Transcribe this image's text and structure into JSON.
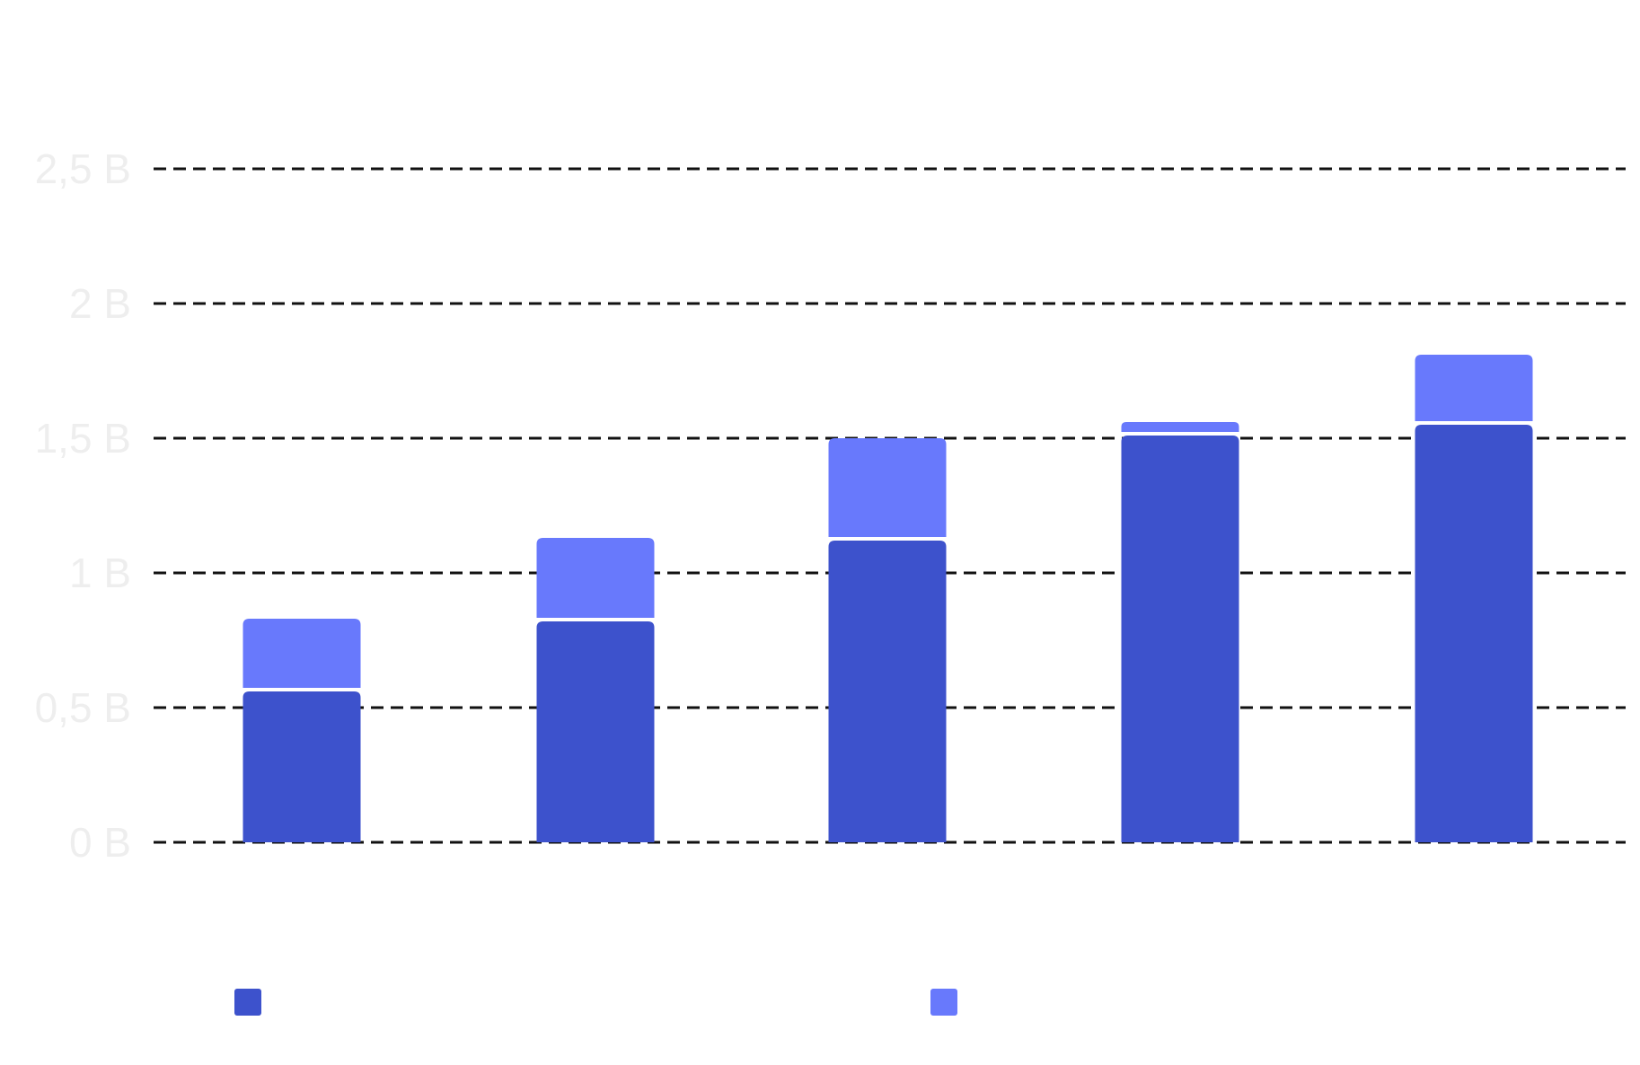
{
  "chart_data": {
    "type": "bar",
    "stacked": true,
    "title": "",
    "xlabel": "",
    "ylabel": "",
    "categories": [
      "",
      "",
      "",
      "",
      ""
    ],
    "series": [
      {
        "values": [
          0.56,
          0.82,
          1.12,
          1.51,
          1.55
        ],
        "color": "#3d52cc"
      },
      {
        "values": [
          0.27,
          0.31,
          0.38,
          0.05,
          0.26
        ],
        "color": "#6879fc"
      }
    ],
    "ylim": [
      0,
      2.5
    ],
    "yticks": [
      0,
      0.5,
      1,
      1.5,
      2,
      2.5
    ],
    "ytick_labels": [
      "0 B",
      "0,5 B",
      "1 B",
      "1,5 B",
      "2 B",
      "2,5 B"
    ],
    "grid": true,
    "grid_style": "dashed",
    "legend": {
      "position": "bottom",
      "entries": [
        {
          "label": "",
          "color": "#3d52cc"
        },
        {
          "label": "",
          "color": "#6879fc"
        }
      ]
    }
  }
}
